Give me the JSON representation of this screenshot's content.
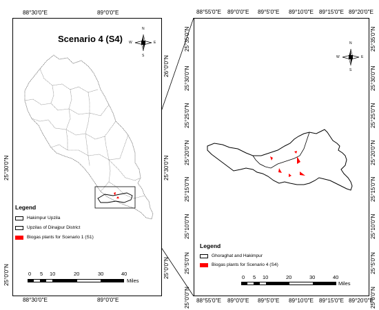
{
  "colors": {
    "plant": "#ff0000",
    "boundary": "#000000",
    "inner_boundary": "#555555"
  },
  "left_map": {
    "title": "Scenario 4 (S4)",
    "top_labels": [
      "88°30'0\"E",
      "89°0'0\"E"
    ],
    "bottom_labels": [
      "88°30'0\"E",
      "89°0'0\"E"
    ],
    "left_labels": [
      "25°30'0\"N",
      "25°0'0\"N"
    ],
    "right_labels": [
      "26°0'0\"N",
      "25°30'0\"N",
      "25°0'0\"N"
    ],
    "north_arrow": {
      "icon": "compass-rose-icon",
      "n": "N",
      "s": "S",
      "e": "E",
      "w": "W"
    },
    "legend": {
      "title": "Legend",
      "items": [
        {
          "label": "Hakimpur Upzila",
          "swatch": "outline"
        },
        {
          "label": "Upzilas of Dinajpur District",
          "swatch": "outline"
        },
        {
          "label": "Biogas plants for Scenario 1 (S1)",
          "swatch": "red"
        }
      ]
    },
    "scale_bar": {
      "ticks": [
        "0",
        "5",
        "10",
        "20",
        "30",
        "40"
      ],
      "unit": "Miles"
    }
  },
  "right_map": {
    "top_labels": [
      "88°55'0\"E",
      "89°0'0\"E",
      "89°5'0\"E",
      "89°10'0\"E",
      "89°15'0\"E",
      "89°20'0\"E"
    ],
    "bottom_labels": [
      "88°55'0\"E",
      "89°0'0\"E",
      "89°5'0\"E",
      "89°10'0\"E",
      "89°15'0\"E",
      "89°20'0\"E"
    ],
    "left_labels": [
      "25°35'0\"N",
      "25°30'0\"N",
      "25°25'0\"N",
      "25°20'0\"N",
      "25°15'0\"N",
      "25°10'0\"N",
      "25°5'0\"N",
      "25°0'0\"N"
    ],
    "right_labels": [
      "25°35'0\"N",
      "25°30'0\"N",
      "25°25'0\"N",
      "25°20'0\"N",
      "25°15'0\"N",
      "25°10'0\"N",
      "25°5'0\"N",
      "25°0'0\"N"
    ],
    "north_arrow": {
      "icon": "compass-rose-icon",
      "n": "N",
      "s": "S",
      "e": "E",
      "w": "W"
    },
    "legend": {
      "title": "Legend",
      "items": [
        {
          "label": "Ghoraghat and Hakimpur",
          "swatch": "outline"
        },
        {
          "label": "Biogas plants for Scenario 4 (S4)",
          "swatch": "red"
        }
      ]
    },
    "scale_bar": {
      "ticks": [
        "0",
        "5",
        "10",
        "20",
        "30",
        "40"
      ],
      "unit": "Miles"
    }
  }
}
